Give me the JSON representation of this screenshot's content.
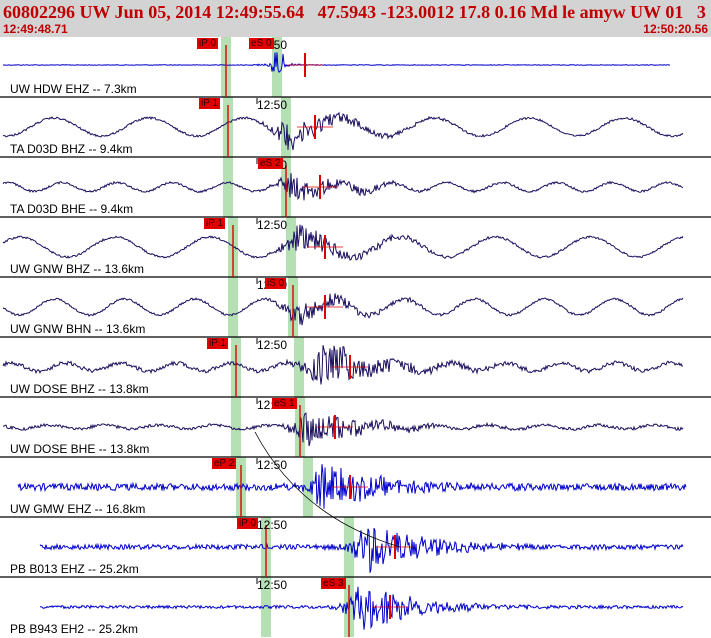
{
  "header": {
    "title": "60802296 UW Jun 05, 2014 12:49:55.64   47.5943 -123.0012 17.8 0.16 Md le amyw UW 01   3",
    "start_time": "12:49:48.71",
    "end_time": "12:50:20.56"
  },
  "colors": {
    "trace_blue": "#0000cc",
    "trace_navy": "#1a0f5e",
    "pick_red": "#e00000",
    "window_green": "#b4e0b4",
    "header_bg": "#d3d3d3",
    "header_text": "#c00000"
  },
  "traces": [
    {
      "label": "UW HDW EHZ -- 7.3km",
      "tick": "12:50",
      "p_pick": "iP 0",
      "s_pick": "eS 0",
      "color": "blue"
    },
    {
      "label": "TA D03D BHZ -- 9.4km",
      "tick": "12:50",
      "p_pick": "iP 1",
      "s_pick": "",
      "color": "navy"
    },
    {
      "label": "TA D03D BHE -- 9.4km",
      "tick": "12:50",
      "p_pick": "",
      "s_pick": "eS 2",
      "color": "navy"
    },
    {
      "label": "UW GNW BHZ -- 13.6km",
      "tick": "12:50",
      "p_pick": "iP 1",
      "s_pick": "",
      "color": "navy"
    },
    {
      "label": "UW GNW BHN -- 13.6km",
      "tick": "12:50",
      "p_pick": "",
      "s_pick": "iS 0",
      "color": "navy"
    },
    {
      "label": "UW DOSE BHZ -- 13.8km",
      "tick": "12:50",
      "p_pick": "iP 1",
      "s_pick": "",
      "color": "navy"
    },
    {
      "label": "UW DOSE BHE -- 13.8km",
      "tick": "12:50",
      "p_pick": "",
      "s_pick": "eS 1",
      "color": "navy"
    },
    {
      "label": "UW GMW EHZ -- 16.8km",
      "tick": "12:50",
      "p_pick": "eP 2",
      "s_pick": "",
      "color": "blue"
    },
    {
      "label": "PB B013 EHZ -- 25.2km",
      "tick": "12:50",
      "p_pick": "iP 0",
      "s_pick": "",
      "color": "blue"
    },
    {
      "label": "PB B943 EH2 -- 25.2km",
      "tick": "12:50",
      "p_pick": "",
      "s_pick": "eS 3",
      "color": "blue"
    }
  ]
}
